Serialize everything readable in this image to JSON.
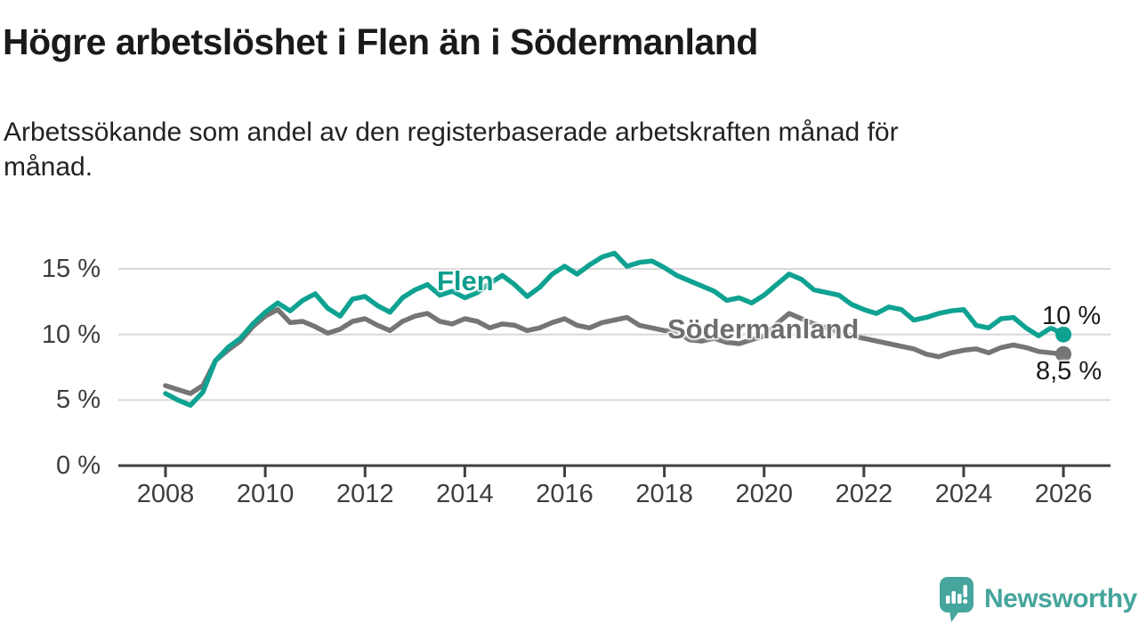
{
  "header": {
    "title": "Högre arbetslöshet i Flen än i Södermanland",
    "subtitle_lines": [
      "Arbetssökande som andel av den registerbaserade arbetskraften månad för",
      "månad."
    ]
  },
  "chart": {
    "series_labels": {
      "flen": "Flen",
      "sodermanland": "Södermanland"
    },
    "end_labels": {
      "flen": "10 %",
      "sodermanland": "8,5 %"
    },
    "colors": {
      "flen_line": "#0fa291",
      "sodermanland_line": "#757575",
      "gridline": "#d8d8d8",
      "axis": "#3f3f3f"
    }
  },
  "chart_data": {
    "type": "line",
    "title": "Högre arbetslöshet i Flen än i Södermanland",
    "subtitle": "Arbetssökande som andel av den registerbaserade arbetskraften månad för månad.",
    "x_unit": "year (decimal, quarterly samples)",
    "ylim": [
      0,
      17
    ],
    "yticks": [
      0,
      5,
      10,
      15
    ],
    "ytick_labels": [
      "0 %",
      "5 %",
      "10 %",
      "15 %"
    ],
    "xticks": [
      2008,
      2010,
      2012,
      2014,
      2016,
      2018,
      2020,
      2022,
      2024,
      2026
    ],
    "xtick_labels": [
      "2008",
      "2010",
      "2012",
      "2014",
      "2016",
      "2018",
      "2020",
      "2022",
      "2024",
      "2026"
    ],
    "grid": "horizontal",
    "legend": "inline-labels",
    "x": [
      2008,
      2008.25,
      2008.5,
      2008.75,
      2009,
      2009.25,
      2009.5,
      2009.75,
      2010,
      2010.25,
      2010.5,
      2010.75,
      2011,
      2011.25,
      2011.5,
      2011.75,
      2012,
      2012.25,
      2012.5,
      2012.75,
      2013,
      2013.25,
      2013.5,
      2013.75,
      2014,
      2014.25,
      2014.5,
      2014.75,
      2015,
      2015.25,
      2015.5,
      2015.75,
      2016,
      2016.25,
      2016.5,
      2016.75,
      2017,
      2017.25,
      2017.5,
      2017.75,
      2018,
      2018.25,
      2018.5,
      2018.75,
      2019,
      2019.25,
      2019.5,
      2019.75,
      2020,
      2020.25,
      2020.5,
      2020.75,
      2021,
      2021.25,
      2021.5,
      2021.75,
      2022,
      2022.25,
      2022.5,
      2022.75,
      2023,
      2023.25,
      2023.5,
      2023.75,
      2024,
      2024.25,
      2024.5,
      2024.75,
      2025,
      2025.25,
      2025.5,
      2025.75,
      2026
    ],
    "series": [
      {
        "name": "Flen",
        "color": "#0fa291",
        "end_label": "10 %",
        "last_value": 10.0,
        "values": [
          5.5,
          5.0,
          4.6,
          5.6,
          8.0,
          9.0,
          9.7,
          10.8,
          11.7,
          12.4,
          11.8,
          12.6,
          13.1,
          12.0,
          11.4,
          12.7,
          12.9,
          12.2,
          11.7,
          12.8,
          13.4,
          13.8,
          13.0,
          13.3,
          12.8,
          13.2,
          13.9,
          14.5,
          13.8,
          12.9,
          13.6,
          14.6,
          15.2,
          14.6,
          15.3,
          15.9,
          16.2,
          15.2,
          15.5,
          15.6,
          15.1,
          14.5,
          14.1,
          13.7,
          13.3,
          12.6,
          12.8,
          12.4,
          13.0,
          13.8,
          14.6,
          14.2,
          13.4,
          13.2,
          13.0,
          12.3,
          11.9,
          11.6,
          12.1,
          11.9,
          11.1,
          11.3,
          11.6,
          11.8,
          11.9,
          10.7,
          10.5,
          11.2,
          11.3,
          10.5,
          9.9,
          10.5,
          10.0
        ]
      },
      {
        "name": "Södermanland",
        "color": "#757575",
        "end_label": "8,5 %",
        "last_value": 8.5,
        "values": [
          6.1,
          5.8,
          5.5,
          6.1,
          8.0,
          8.8,
          9.5,
          10.6,
          11.4,
          11.9,
          10.9,
          11.0,
          10.6,
          10.1,
          10.4,
          11.0,
          11.2,
          10.7,
          10.3,
          11.0,
          11.4,
          11.6,
          11.0,
          10.8,
          11.2,
          11.0,
          10.5,
          10.8,
          10.7,
          10.3,
          10.5,
          10.9,
          11.2,
          10.7,
          10.5,
          10.9,
          11.1,
          11.3,
          10.7,
          10.5,
          10.3,
          10.2,
          9.6,
          9.5,
          9.7,
          9.4,
          9.3,
          9.6,
          9.9,
          10.8,
          11.6,
          11.2,
          10.8,
          10.5,
          10.2,
          9.9,
          9.7,
          9.5,
          9.3,
          9.1,
          8.9,
          8.5,
          8.3,
          8.6,
          8.8,
          8.9,
          8.6,
          9.0,
          9.2,
          9.0,
          8.7,
          8.6,
          8.5
        ]
      }
    ]
  },
  "footer": {
    "brand": "Newsworthy"
  }
}
